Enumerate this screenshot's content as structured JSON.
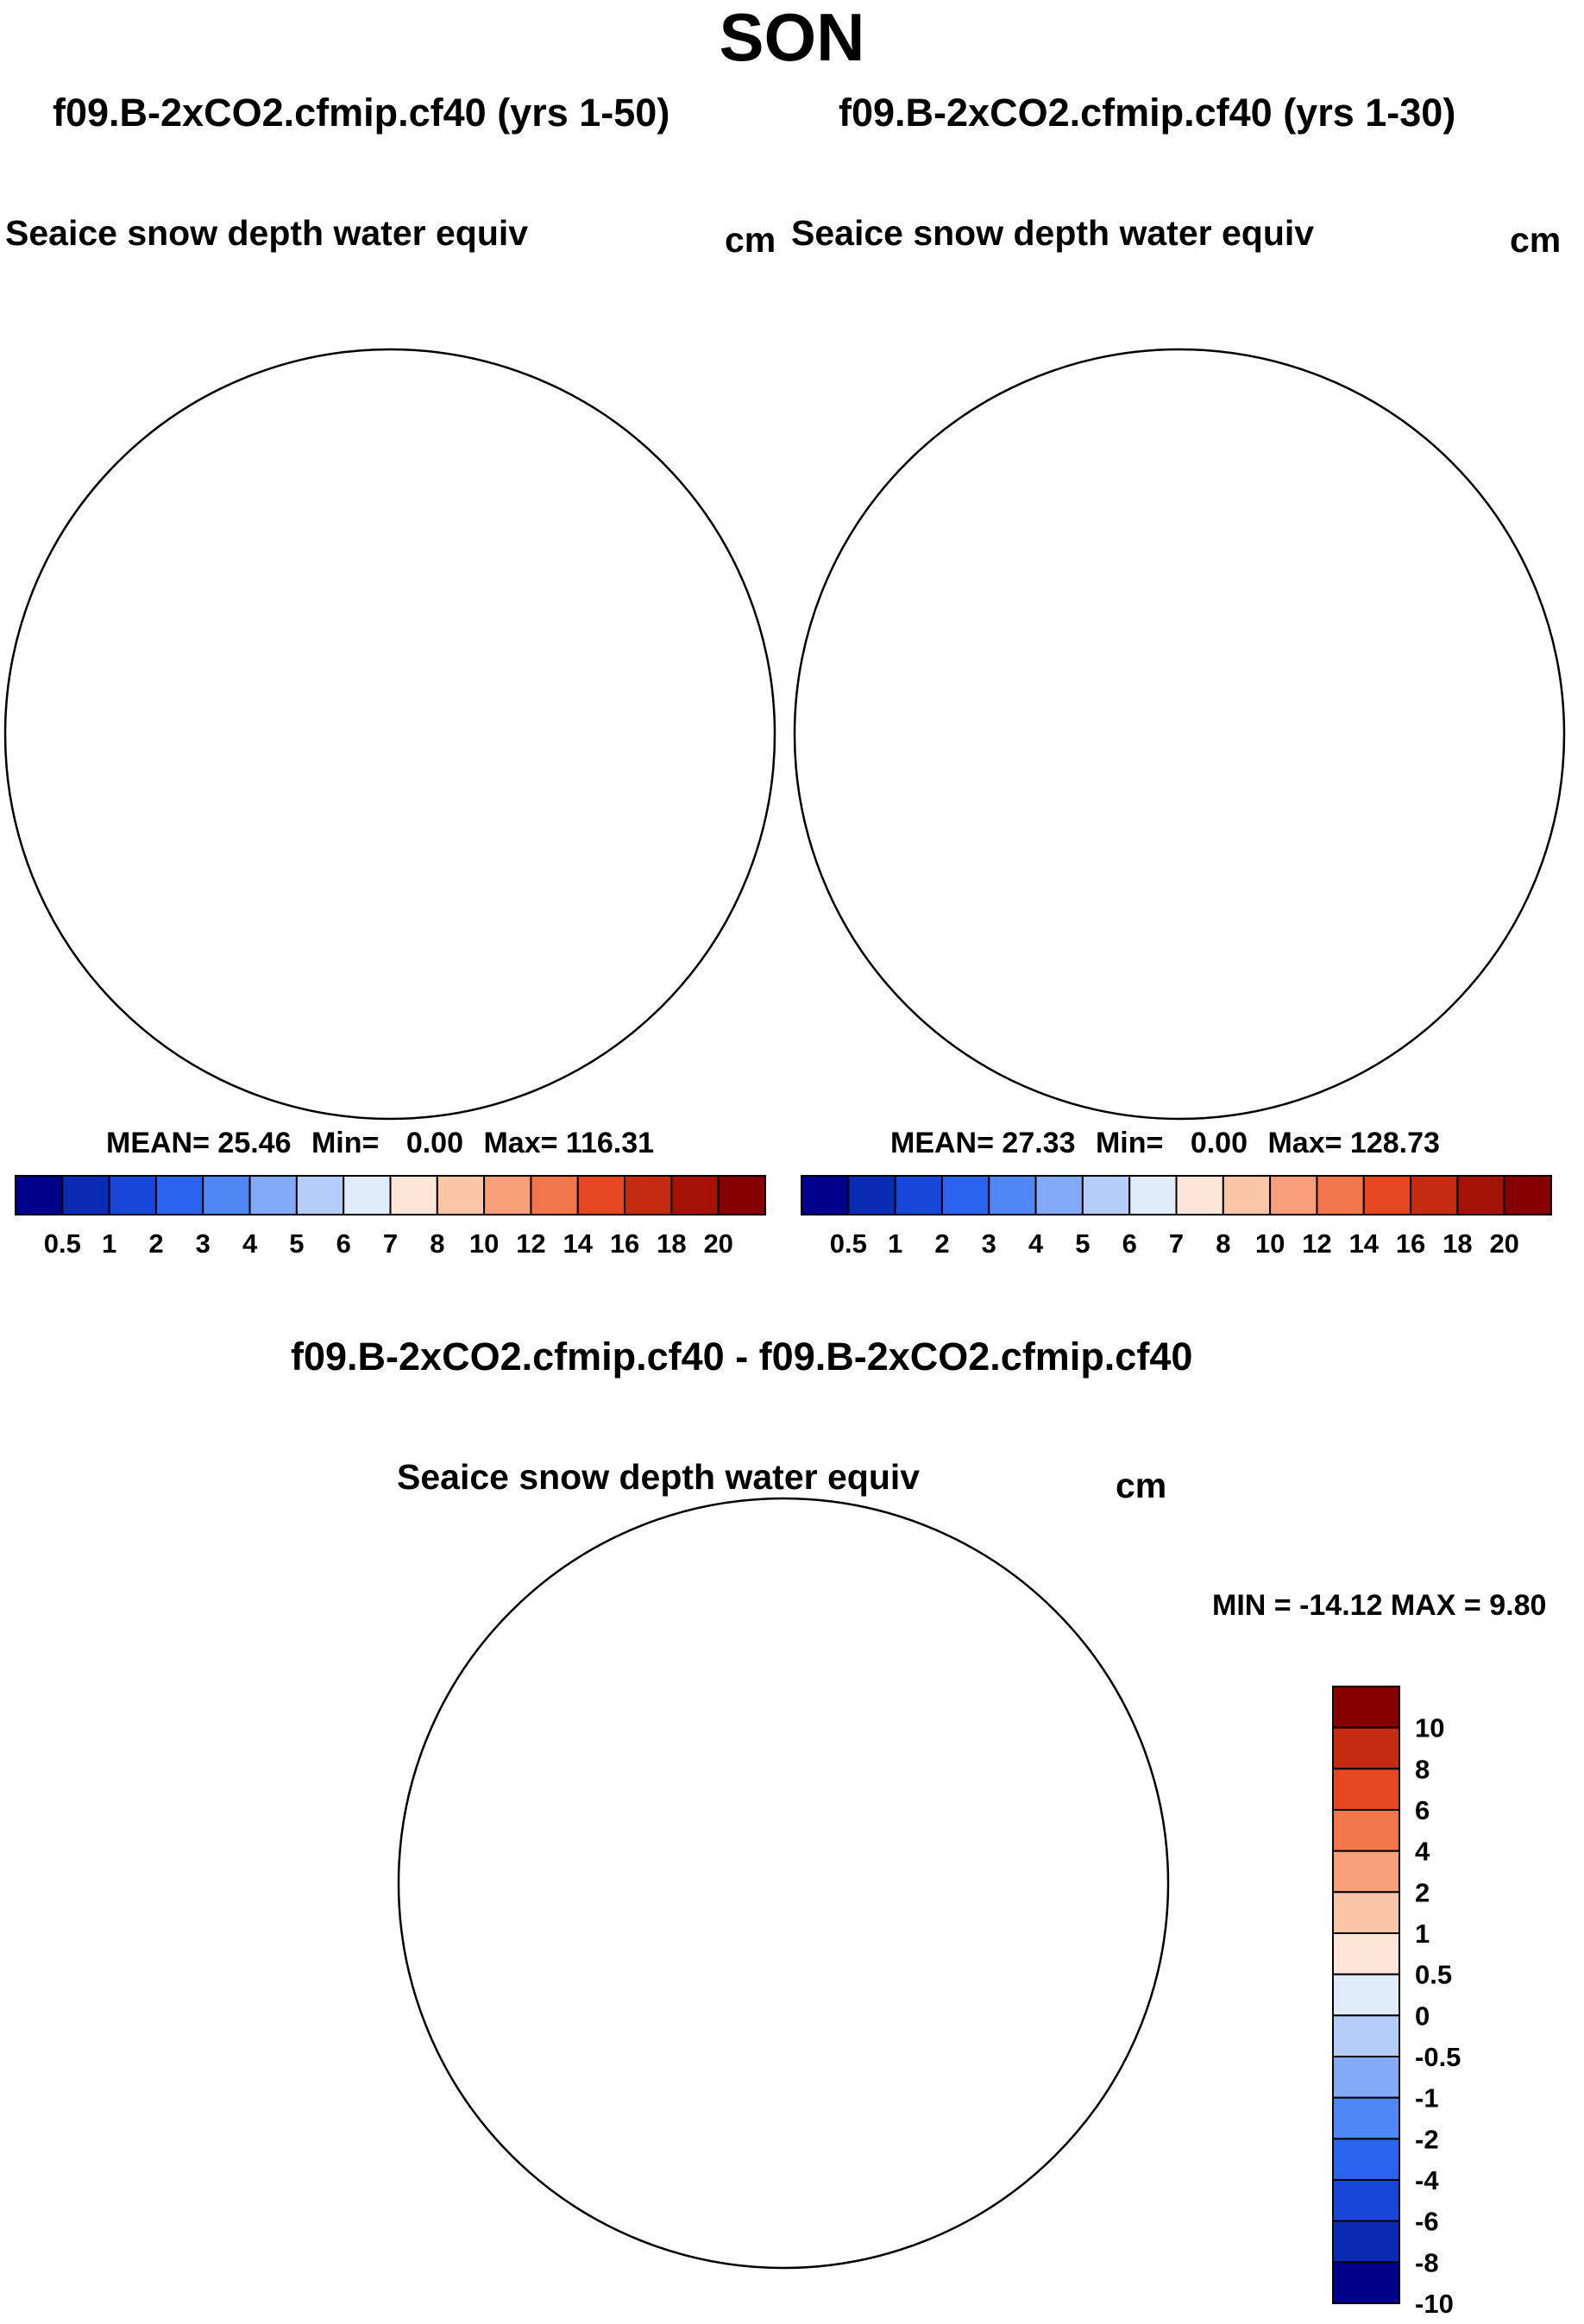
{
  "season": "SON",
  "panels": [
    {
      "case": "f09.B-2xCO2.cfmip.cf40 (yrs 1-50)",
      "variable": "Seaice snow depth water equiv",
      "units": "cm",
      "stats": {
        "mean_label": "MEAN=",
        "mean": "25.46",
        "min_label": "Min=",
        "min": "0.00",
        "max_label": "Max=",
        "max": "116.31"
      }
    },
    {
      "case": "f09.B-2xCO2.cfmip.cf40 (yrs 1-30)",
      "variable": "Seaice snow depth water equiv",
      "units": "cm",
      "stats": {
        "mean_label": "MEAN=",
        "mean": "27.33",
        "min_label": "Min=",
        "min": "0.00",
        "max_label": "Max=",
        "max": "128.73"
      }
    }
  ],
  "diff_panel": {
    "case": "f09.B-2xCO2.cfmip.cf40 - f09.B-2xCO2.cfmip.cf40",
    "variable": "Seaice snow depth water equiv",
    "units": "cm",
    "minmax": "MIN = -14.12 MAX =   9.80"
  },
  "colorbars": {
    "abs": {
      "colors": [
        "#00008b",
        "#0a2bb4",
        "#1746d8",
        "#2a63ee",
        "#5186f5",
        "#83aaf7",
        "#b6ccf9",
        "#e1ecfb",
        "#fde6d8",
        "#fbc5a8",
        "#f7a07a",
        "#f2764c",
        "#e54821",
        "#c42b10",
        "#a31204",
        "#870000"
      ],
      "ticks": [
        "0.5",
        "1",
        "2",
        "3",
        "4",
        "5",
        "6",
        "7",
        "8",
        "10",
        "12",
        "14",
        "16",
        "18",
        "20"
      ]
    },
    "diff": {
      "colors": [
        "#00008b",
        "#0a2bb4",
        "#1746d8",
        "#2a63ee",
        "#5186f5",
        "#83aaf7",
        "#b6ccf9",
        "#e1ecfb",
        "#fde6d8",
        "#fbc5a8",
        "#f7a07a",
        "#f2764c",
        "#e54821",
        "#c42b10",
        "#870000"
      ],
      "ticks": [
        "10",
        "8",
        "6",
        "4",
        "2",
        "1",
        "0.5",
        "0",
        "-0.5",
        "-1",
        "-2",
        "-4",
        "-6",
        "-8",
        "-10"
      ]
    }
  },
  "map_colors": {
    "ice_high": "#8b0000",
    "ice_mid": "#d8401a",
    "ice_edge_warm": "#f4a07a",
    "ice_edge_light": "#dce9fb",
    "ice_edge_blue": "#2a55e0",
    "ice_edge_dark": "#0a1ea0",
    "diff_light": "#c3d5f8",
    "diff_mid": "#6a95f0",
    "diff_dark": "#1a3fd0",
    "diff_warm": "#f5b89a",
    "diff_red": "#e8532a"
  }
}
